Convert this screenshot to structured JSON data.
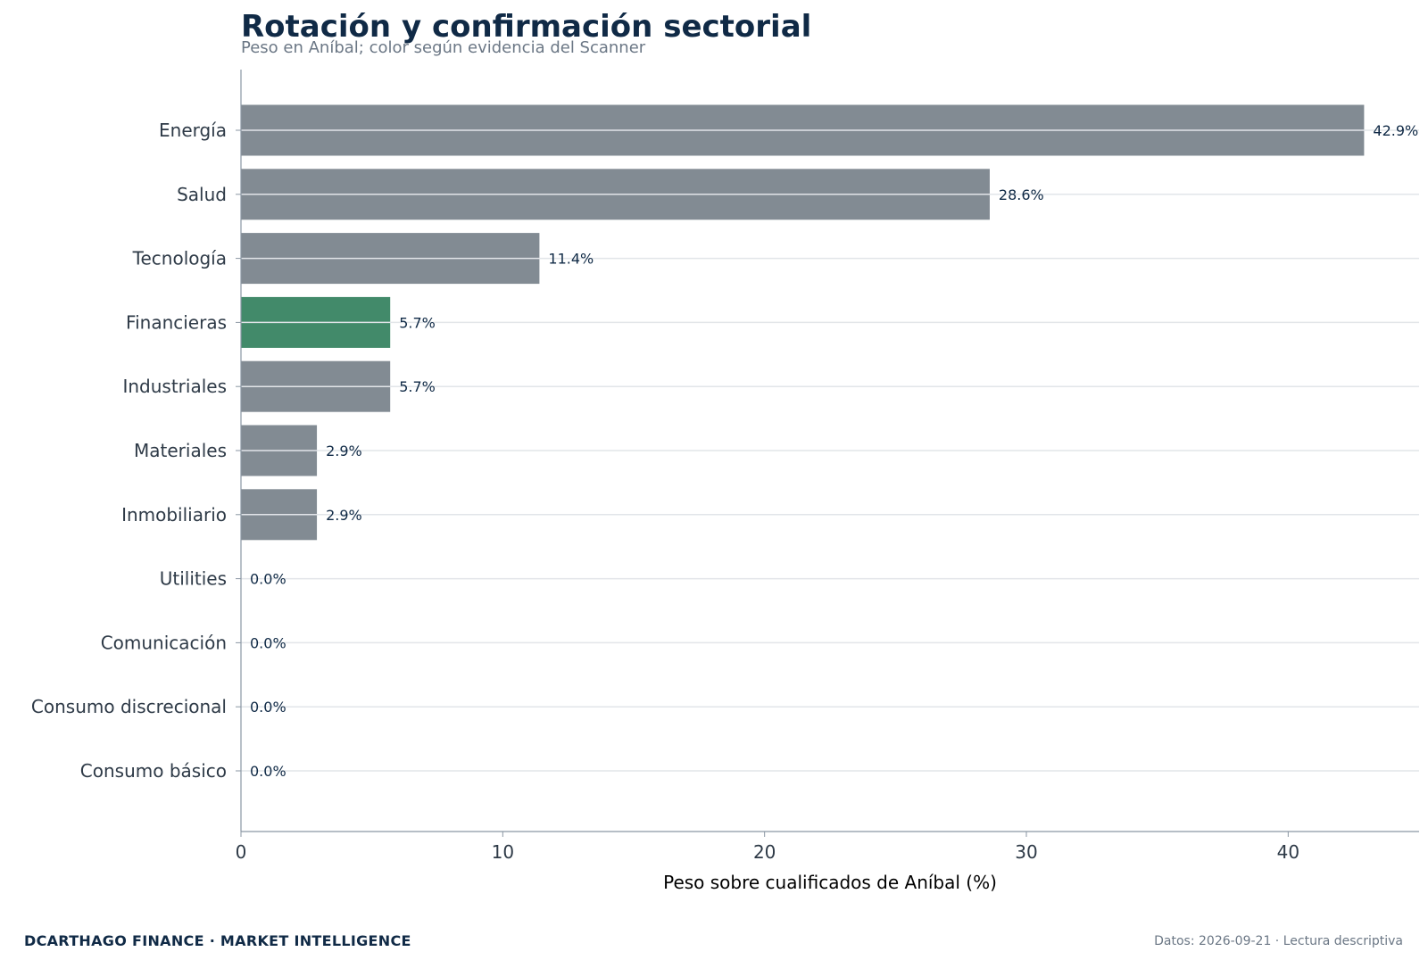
{
  "chart_data": {
    "type": "bar",
    "orientation": "horizontal",
    "title": "Rotación y confirmación sectorial",
    "subtitle": "Peso en Aníbal; color según evidencia del Scanner",
    "xlabel": "Peso sobre cualificados de Aníbal (%)",
    "ylabel": "",
    "xlim": [
      0,
      45
    ],
    "xticks": [
      "0",
      "10",
      "20",
      "30",
      "40"
    ],
    "grid": "horizontal",
    "categories": [
      "Energía",
      "Salud",
      "Tecnología",
      "Financieras",
      "Industriales",
      "Materiales",
      "Inmobiliario",
      "Utilities",
      "Comunicación",
      "Consumo discrecional",
      "Consumo básico"
    ],
    "values": [
      42.9,
      28.6,
      11.4,
      5.7,
      5.7,
      2.9,
      2.9,
      0.0,
      0.0,
      0.0,
      0.0
    ],
    "data_labels": [
      "42.9%",
      "28.6%",
      "11.4%",
      "5.7%",
      "5.7%",
      "2.9%",
      "2.9%",
      "0.0%",
      "0.0%",
      "0.0%",
      "0.0%"
    ],
    "colors": [
      "#828b93",
      "#828b93",
      "#828b93",
      "#428a6a",
      "#828b93",
      "#828b93",
      "#828b93",
      "#828b93",
      "#828b93",
      "#828b93",
      "#828b93"
    ]
  },
  "footer": {
    "brand": "DCARTHAGO FINANCE · MARKET INTELLIGENCE",
    "note": "Datos: 2026-09-21 · Lectura descriptiva"
  }
}
